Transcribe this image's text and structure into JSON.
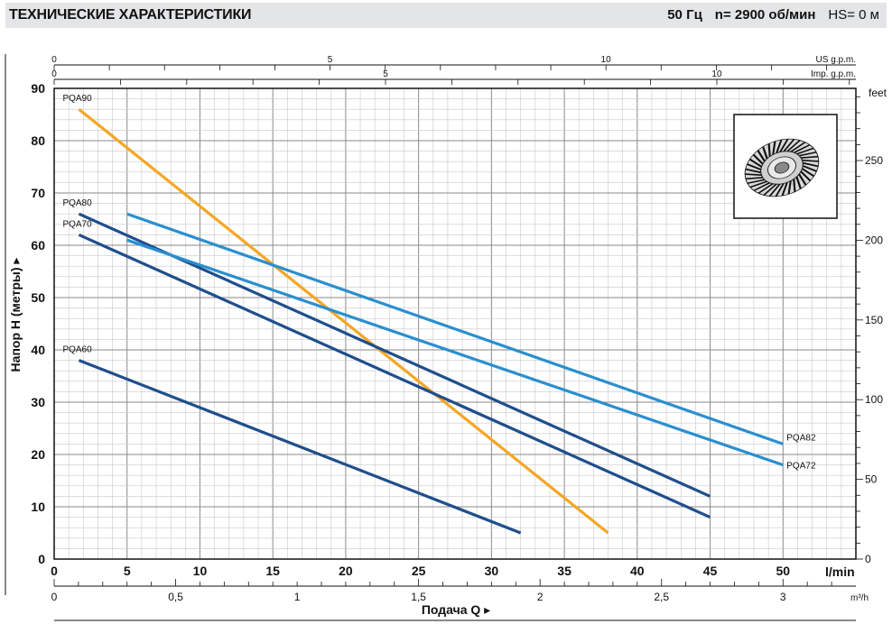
{
  "header": {
    "title": "ТЕХНИЧЕСКИЕ ХАРАКТЕРИСТИКИ",
    "frequency": "50 Гц",
    "speed": "n= 2900  об/мин",
    "hs": "HS= 0 м"
  },
  "chart_data": {
    "type": "line",
    "title": "",
    "xlabel": "Подача Q",
    "ylabel": "Напор H (метры)",
    "x_unit": "l/min",
    "xlim": [
      0,
      55
    ],
    "ylim": [
      0,
      90
    ],
    "x_ticks": [
      0,
      5,
      10,
      15,
      20,
      25,
      30,
      35,
      40,
      45,
      50
    ],
    "y_ticks": [
      0,
      10,
      20,
      30,
      40,
      50,
      60,
      70,
      80,
      90
    ],
    "grid": true,
    "secondary_axes": {
      "us_gpm": {
        "label": "US g.p.m.",
        "ticks": [
          "0",
          "5",
          "10"
        ],
        "values": [
          0,
          5,
          10
        ]
      },
      "imp_gpm": {
        "label": "Imp. g.p.m.",
        "ticks": [
          "0",
          "5",
          "10"
        ],
        "values": [
          0,
          5,
          10
        ]
      },
      "m3h": {
        "label": "m³/h",
        "ticks": [
          "0",
          "0,5",
          "1",
          "1,5",
          "2",
          "2,5",
          "3"
        ],
        "values": [
          0,
          0.5,
          1,
          1.5,
          2,
          2.5,
          3
        ]
      },
      "feet": {
        "label": "feet",
        "ticks": [
          "0",
          "50",
          "100",
          "150",
          "200",
          "250"
        ],
        "values": [
          0,
          50,
          100,
          150,
          200,
          250
        ]
      }
    },
    "series": [
      {
        "name": "PQA90",
        "color": "#f5a623",
        "x": [
          1.7,
          38
        ],
        "y": [
          86,
          5
        ]
      },
      {
        "name": "PQA80",
        "color": "#1f4e8c",
        "x": [
          1.7,
          45
        ],
        "y": [
          66,
          12
        ]
      },
      {
        "name": "PQA70",
        "color": "#1f4e8c",
        "x": [
          1.7,
          45
        ],
        "y": [
          62,
          8
        ]
      },
      {
        "name": "PQA60",
        "color": "#1f4e8c",
        "x": [
          1.7,
          32
        ],
        "y": [
          38,
          5
        ]
      },
      {
        "name": "PQA82",
        "color": "#2a8fcf",
        "x": [
          5,
          50
        ],
        "y": [
          66,
          22
        ]
      },
      {
        "name": "PQA72",
        "color": "#2a8fcf",
        "x": [
          5,
          50
        ],
        "y": [
          61,
          18
        ]
      }
    ]
  }
}
